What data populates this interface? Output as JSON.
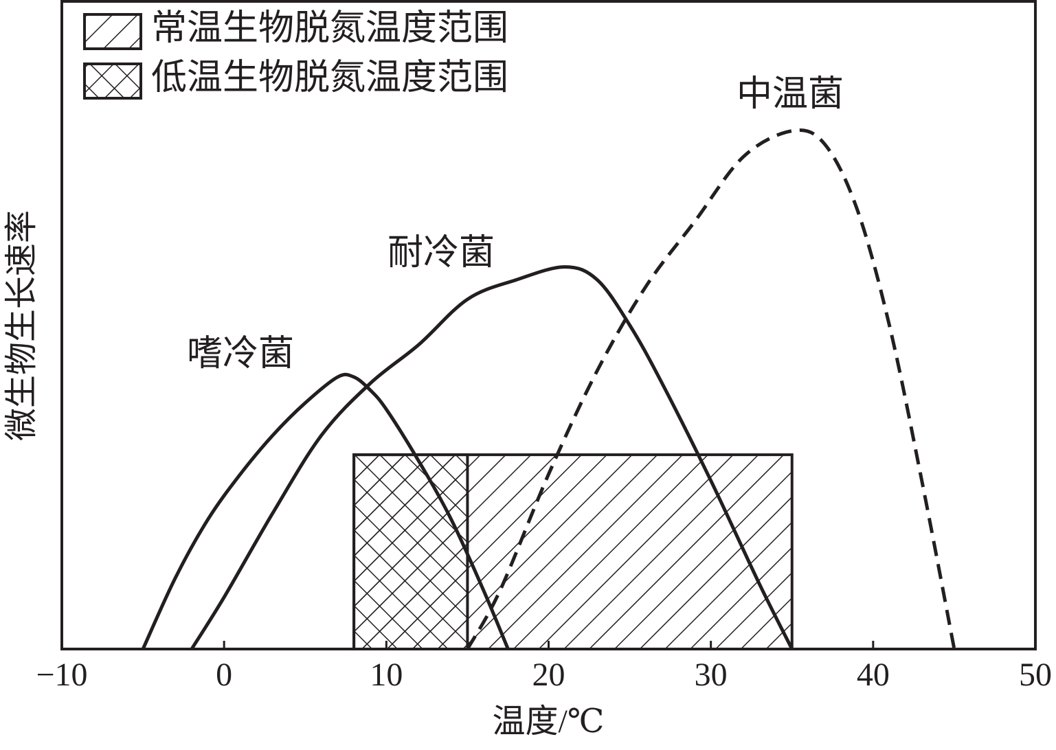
{
  "chart_data": {
    "type": "line",
    "x_label": "温度/℃",
    "y_label": "微生物生长速率",
    "xlim": [
      -10,
      50
    ],
    "xticks": [
      {
        "value": -10,
        "label": "−10"
      },
      0,
      10,
      20,
      30,
      40,
      50
    ],
    "ylim": [
      0,
      100
    ],
    "series": [
      {
        "name": "嗜冷菌",
        "color": "#231f20",
        "dashed": false,
        "x": [
          -5,
          -3,
          -1,
          1,
          3,
          5,
          7,
          8,
          9,
          10,
          12,
          14,
          16,
          17.5
        ],
        "values": [
          0,
          11,
          20,
          27,
          33,
          38,
          42,
          42,
          40,
          37,
          29,
          20,
          9,
          0
        ]
      },
      {
        "name": "耐冷菌",
        "color": "#231f20",
        "dashed": false,
        "x": [
          -2,
          0,
          3,
          6,
          9,
          12,
          15,
          18,
          21,
          23,
          25,
          27,
          30,
          33,
          35
        ],
        "values": [
          0,
          8,
          21,
          33,
          41,
          47,
          54,
          57,
          59,
          57,
          50,
          41,
          26,
          10,
          0
        ]
      },
      {
        "name": "中温菌",
        "color": "#231f20",
        "dashed": true,
        "x": [
          15,
          17,
          20,
          23,
          26,
          29,
          32,
          35,
          37,
          39,
          41,
          43,
          45
        ],
        "values": [
          0,
          9,
          27,
          43,
          56,
          66,
          76,
          80,
          78,
          68,
          50,
          26,
          0
        ]
      }
    ],
    "regions": [
      {
        "name": "常温生物脱氮温度范围",
        "x": [
          8,
          35
        ],
        "height": 30,
        "pattern": "hatch"
      },
      {
        "name": "低温生物脱氮温度范围",
        "x": [
          8,
          15
        ],
        "height": 30,
        "pattern": "cross"
      }
    ]
  }
}
